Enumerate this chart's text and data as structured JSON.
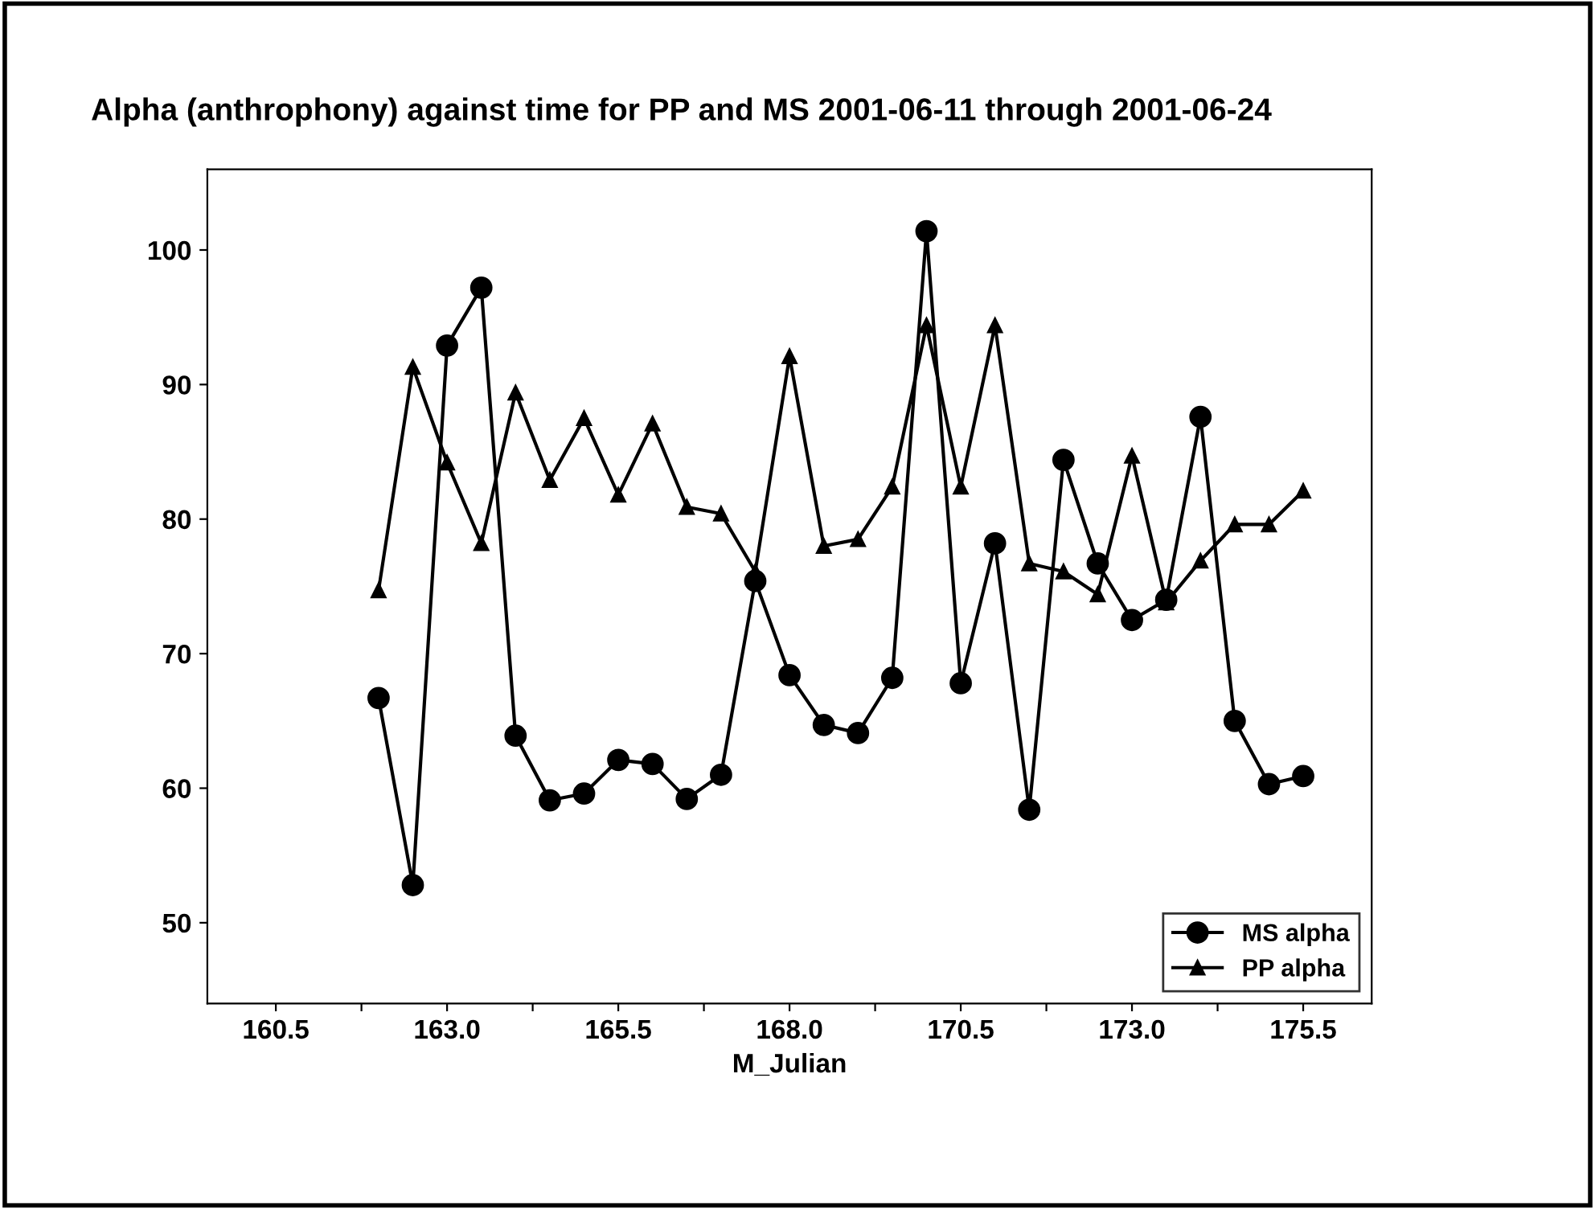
{
  "chart_data": {
    "type": "line",
    "title": "Alpha (anthrophony) against time for PP and MS 2001-06-11 through 2001-06-24",
    "xlabel": "M_Julian",
    "x": [
      162.0,
      162.5,
      163.0,
      163.5,
      164.0,
      164.5,
      165.0,
      165.5,
      166.0,
      166.5,
      167.0,
      167.5,
      168.0,
      168.5,
      169.0,
      169.5,
      170.0,
      170.5,
      171.0,
      171.5,
      172.0,
      172.5,
      173.0,
      173.5,
      174.0,
      174.5,
      175.0,
      175.5
    ],
    "series": [
      {
        "name": "MS alpha",
        "color": "#000000",
        "marker": "circle",
        "values": [
          66.7,
          52.8,
          92.9,
          97.2,
          63.9,
          59.1,
          59.6,
          62.1,
          61.8,
          59.2,
          61.0,
          75.4,
          68.4,
          64.7,
          64.1,
          68.2,
          101.4,
          67.8,
          78.2,
          58.4,
          84.4,
          76.7,
          72.5,
          74.0,
          87.6,
          65.0,
          60.3,
          60.9
        ]
      },
      {
        "name": "PP alpha",
        "color": "#000000",
        "marker": "triangle",
        "values": [
          74.7,
          91.3,
          84.2,
          78.2,
          89.4,
          82.9,
          87.5,
          81.8,
          87.1,
          80.9,
          80.4,
          76.1,
          92.1,
          78.0,
          78.5,
          82.4,
          94.4,
          82.4,
          94.4,
          76.7,
          76.1,
          74.4,
          84.7,
          73.8,
          76.9,
          79.6,
          79.6,
          82.1
        ]
      }
    ],
    "xlim": [
      159.5,
      176.5
    ],
    "ylim": [
      44,
      106
    ],
    "xticks": [
      {
        "value": 160.5,
        "label": "160.5"
      },
      {
        "value": 161.75,
        "label": null
      },
      {
        "value": 163.0,
        "label": "163.0"
      },
      {
        "value": 164.25,
        "label": null
      },
      {
        "value": 165.5,
        "label": "165.5"
      },
      {
        "value": 166.75,
        "label": null
      },
      {
        "value": 168.0,
        "label": "168.0"
      },
      {
        "value": 169.25,
        "label": null
      },
      {
        "value": 170.5,
        "label": "170.5"
      },
      {
        "value": 171.75,
        "label": null
      },
      {
        "value": 173.0,
        "label": "173.0"
      },
      {
        "value": 174.25,
        "label": null
      },
      {
        "value": 175.5,
        "label": "175.5"
      }
    ],
    "yticks": [
      50,
      60,
      70,
      80,
      90,
      100
    ],
    "legend": "bottom right",
    "grid": false,
    "line_style": "solid"
  }
}
